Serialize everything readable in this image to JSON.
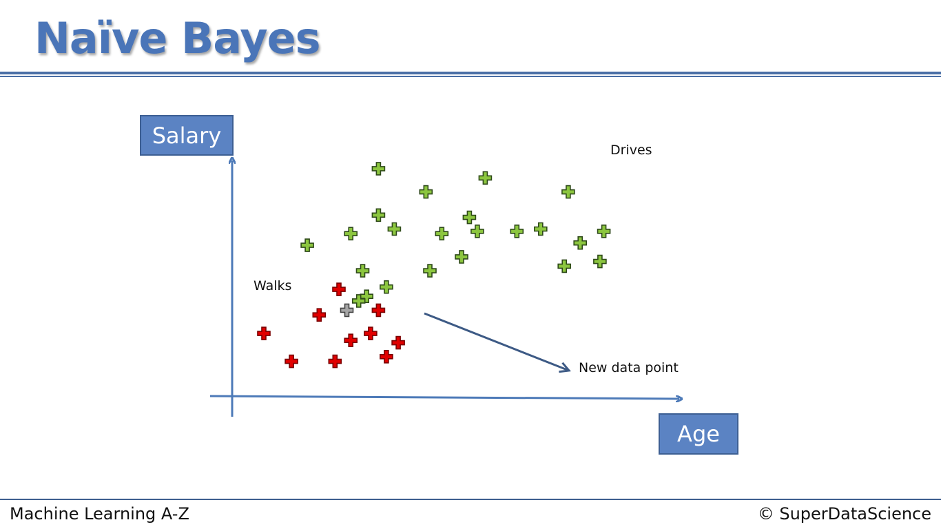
{
  "slide": {
    "title": "Naïve Bayes",
    "footer_left": "Machine Learning A-Z",
    "footer_right": "© SuperDataScience"
  },
  "colors": {
    "accent": "#4a75b8",
    "axis": "#4d7ab8",
    "drives": "#8cc63f",
    "walks": "#e00000",
    "new_point": "#a6a6a6",
    "arrow": "#3d5a85"
  },
  "chart_data": {
    "type": "scatter",
    "xlabel": "Age",
    "ylabel": "Salary",
    "xlim": [
      0,
      100
    ],
    "ylim": [
      0,
      100
    ],
    "grid": false,
    "series": [
      {
        "name": "Drives",
        "points": [
          [
            33,
            95
          ],
          [
            60,
            91
          ],
          [
            45,
            85
          ],
          [
            81,
            85
          ],
          [
            33,
            75
          ],
          [
            56,
            74
          ],
          [
            37,
            69
          ],
          [
            49,
            67
          ],
          [
            58,
            68
          ],
          [
            68,
            68
          ],
          [
            90,
            68
          ],
          [
            84,
            63
          ],
          [
            74,
            69
          ],
          [
            15,
            62
          ],
          [
            26,
            67
          ],
          [
            54,
            57
          ],
          [
            46,
            51
          ],
          [
            29,
            51
          ],
          [
            35,
            44
          ],
          [
            89,
            55
          ],
          [
            80,
            53
          ],
          [
            30,
            40
          ],
          [
            28,
            38
          ]
        ]
      },
      {
        "name": "Walks",
        "points": [
          [
            23,
            43
          ],
          [
            33,
            34
          ],
          [
            18,
            32
          ],
          [
            31,
            24
          ],
          [
            26,
            21
          ],
          [
            4,
            24
          ],
          [
            11,
            12
          ],
          [
            38,
            20
          ],
          [
            22,
            12
          ],
          [
            35,
            14
          ]
        ]
      }
    ],
    "new_point": {
      "label": "New data point",
      "x": 25,
      "y": 34
    }
  }
}
